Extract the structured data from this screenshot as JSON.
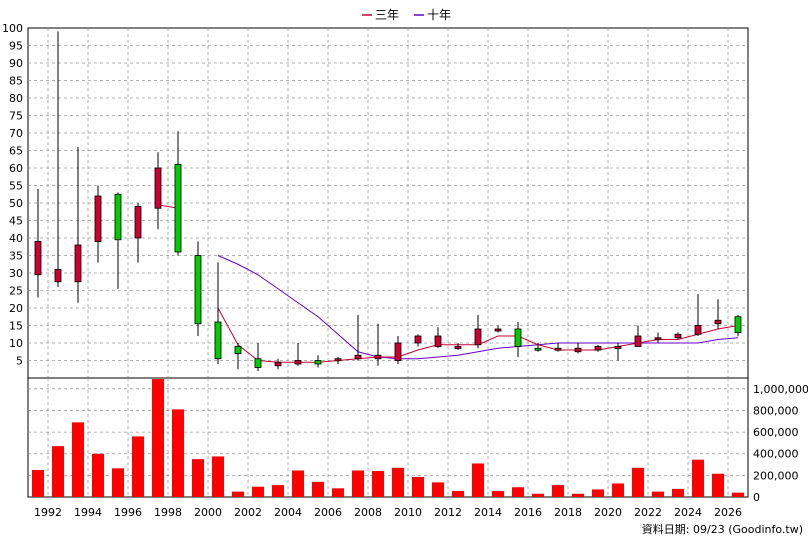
{
  "chart_data": {
    "type": "candlestick",
    "legend": [
      {
        "name": "三年",
        "color": "#cc0033"
      },
      {
        "name": "十年",
        "color": "#6600cc"
      }
    ],
    "source_label": "資料日期: 09/23 (Goodinfo.tw)",
    "x_tick_labels": [
      "1992",
      "1994",
      "1996",
      "1998",
      "2000",
      "2002",
      "2004",
      "2006",
      "2008",
      "2010",
      "2012",
      "2014",
      "2016",
      "2018",
      "2020",
      "2022",
      "2024",
      "2026"
    ],
    "price_axis": {
      "ylim": [
        0,
        100
      ],
      "ticks": [
        5,
        10,
        15,
        20,
        25,
        30,
        35,
        40,
        45,
        50,
        55,
        60,
        65,
        70,
        75,
        80,
        85,
        90,
        95,
        100
      ]
    },
    "volume_axis": {
      "ylim": [
        0,
        1100000
      ],
      "ticks": [
        0,
        200000,
        400000,
        600000,
        800000,
        1000000
      ],
      "tick_labels": [
        "0",
        "200,000",
        "400,000",
        "600,000",
        "800,000",
        "1,000,000"
      ]
    },
    "colors": {
      "up": "#cc0033",
      "down": "#00cc00",
      "volume": "#ff0000",
      "grid": "#999999"
    },
    "years": [
      1991,
      1992,
      1993,
      1994,
      1995,
      1996,
      1997,
      1998,
      1999,
      2000,
      2001,
      2002,
      2003,
      2004,
      2005,
      2006,
      2007,
      2008,
      2009,
      2010,
      2011,
      2012,
      2013,
      2014,
      2015,
      2016,
      2017,
      2018,
      2019,
      2020,
      2021,
      2022,
      2023,
      2024,
      2025,
      2026
    ],
    "open": [
      29.5,
      27.5,
      27.5,
      39,
      52.5,
      40,
      48.5,
      61,
      35,
      16,
      9,
      5.5,
      3.5,
      4,
      5,
      5,
      5.5,
      5.5,
      5,
      10,
      9,
      8.5,
      9.5,
      14,
      14,
      8.5,
      8.5,
      7.5,
      8,
      8.5,
      9,
      11,
      11.5,
      12.5,
      15.5,
      17.5
    ],
    "close": [
      39,
      31,
      38,
      52,
      39.5,
      49,
      60,
      36,
      15.5,
      5.5,
      7,
      3,
      4.5,
      5,
      4,
      5.5,
      6.5,
      6.5,
      10,
      12,
      12,
      9,
      14,
      14,
      9,
      8,
      8.5,
      8.5,
      9,
      9,
      12,
      11.5,
      12.5,
      15,
      16.5,
      13
    ],
    "high": [
      54,
      99,
      66,
      55,
      53,
      50,
      64.5,
      70.5,
      39,
      33,
      10,
      10,
      5.5,
      10,
      6.5,
      6,
      18,
      15.5,
      12,
      12.5,
      14.5,
      10,
      18,
      15,
      16,
      10,
      10,
      10,
      9.5,
      10,
      15,
      13,
      13,
      24,
      22.5,
      18
    ],
    "low": [
      23,
      26,
      21.5,
      33,
      25.5,
      33,
      42.5,
      35,
      12,
      4,
      2.5,
      2,
      2.5,
      3.5,
      3,
      4,
      5,
      3.5,
      4,
      9,
      8.5,
      8,
      8.5,
      13,
      6,
      7.5,
      7.5,
      7,
      7.5,
      5,
      9,
      10,
      11,
      12,
      14,
      12
    ],
    "ma3": [
      null,
      null,
      null,
      null,
      null,
      null,
      49.5,
      48.5,
      null,
      20,
      9.5,
      5,
      4.5,
      4.5,
      4.5,
      5,
      5.5,
      6,
      6,
      8,
      9.5,
      9.5,
      9.5,
      12,
      12,
      9.5,
      8,
      8,
      8,
      9,
      10,
      11,
      11,
      12.5,
      14,
      15
    ],
    "ma10": [
      null,
      null,
      null,
      null,
      null,
      null,
      null,
      null,
      null,
      35,
      32.5,
      29.5,
      25.5,
      21.5,
      17.5,
      12.5,
      7.5,
      6,
      5.5,
      5.5,
      6,
      6.5,
      7.5,
      8.5,
      9,
      9.5,
      10,
      10,
      10,
      10,
      10,
      10,
      10,
      10,
      11,
      11.5
    ],
    "volume": [
      250000,
      470000,
      690000,
      400000,
      265000,
      560000,
      1090000,
      810000,
      350000,
      375000,
      50000,
      95000,
      110000,
      245000,
      140000,
      80000,
      245000,
      240000,
      270000,
      185000,
      135000,
      55000,
      310000,
      55000,
      90000,
      30000,
      110000,
      30000,
      70000,
      125000,
      270000,
      50000,
      75000,
      345000,
      215000,
      40000
    ]
  }
}
